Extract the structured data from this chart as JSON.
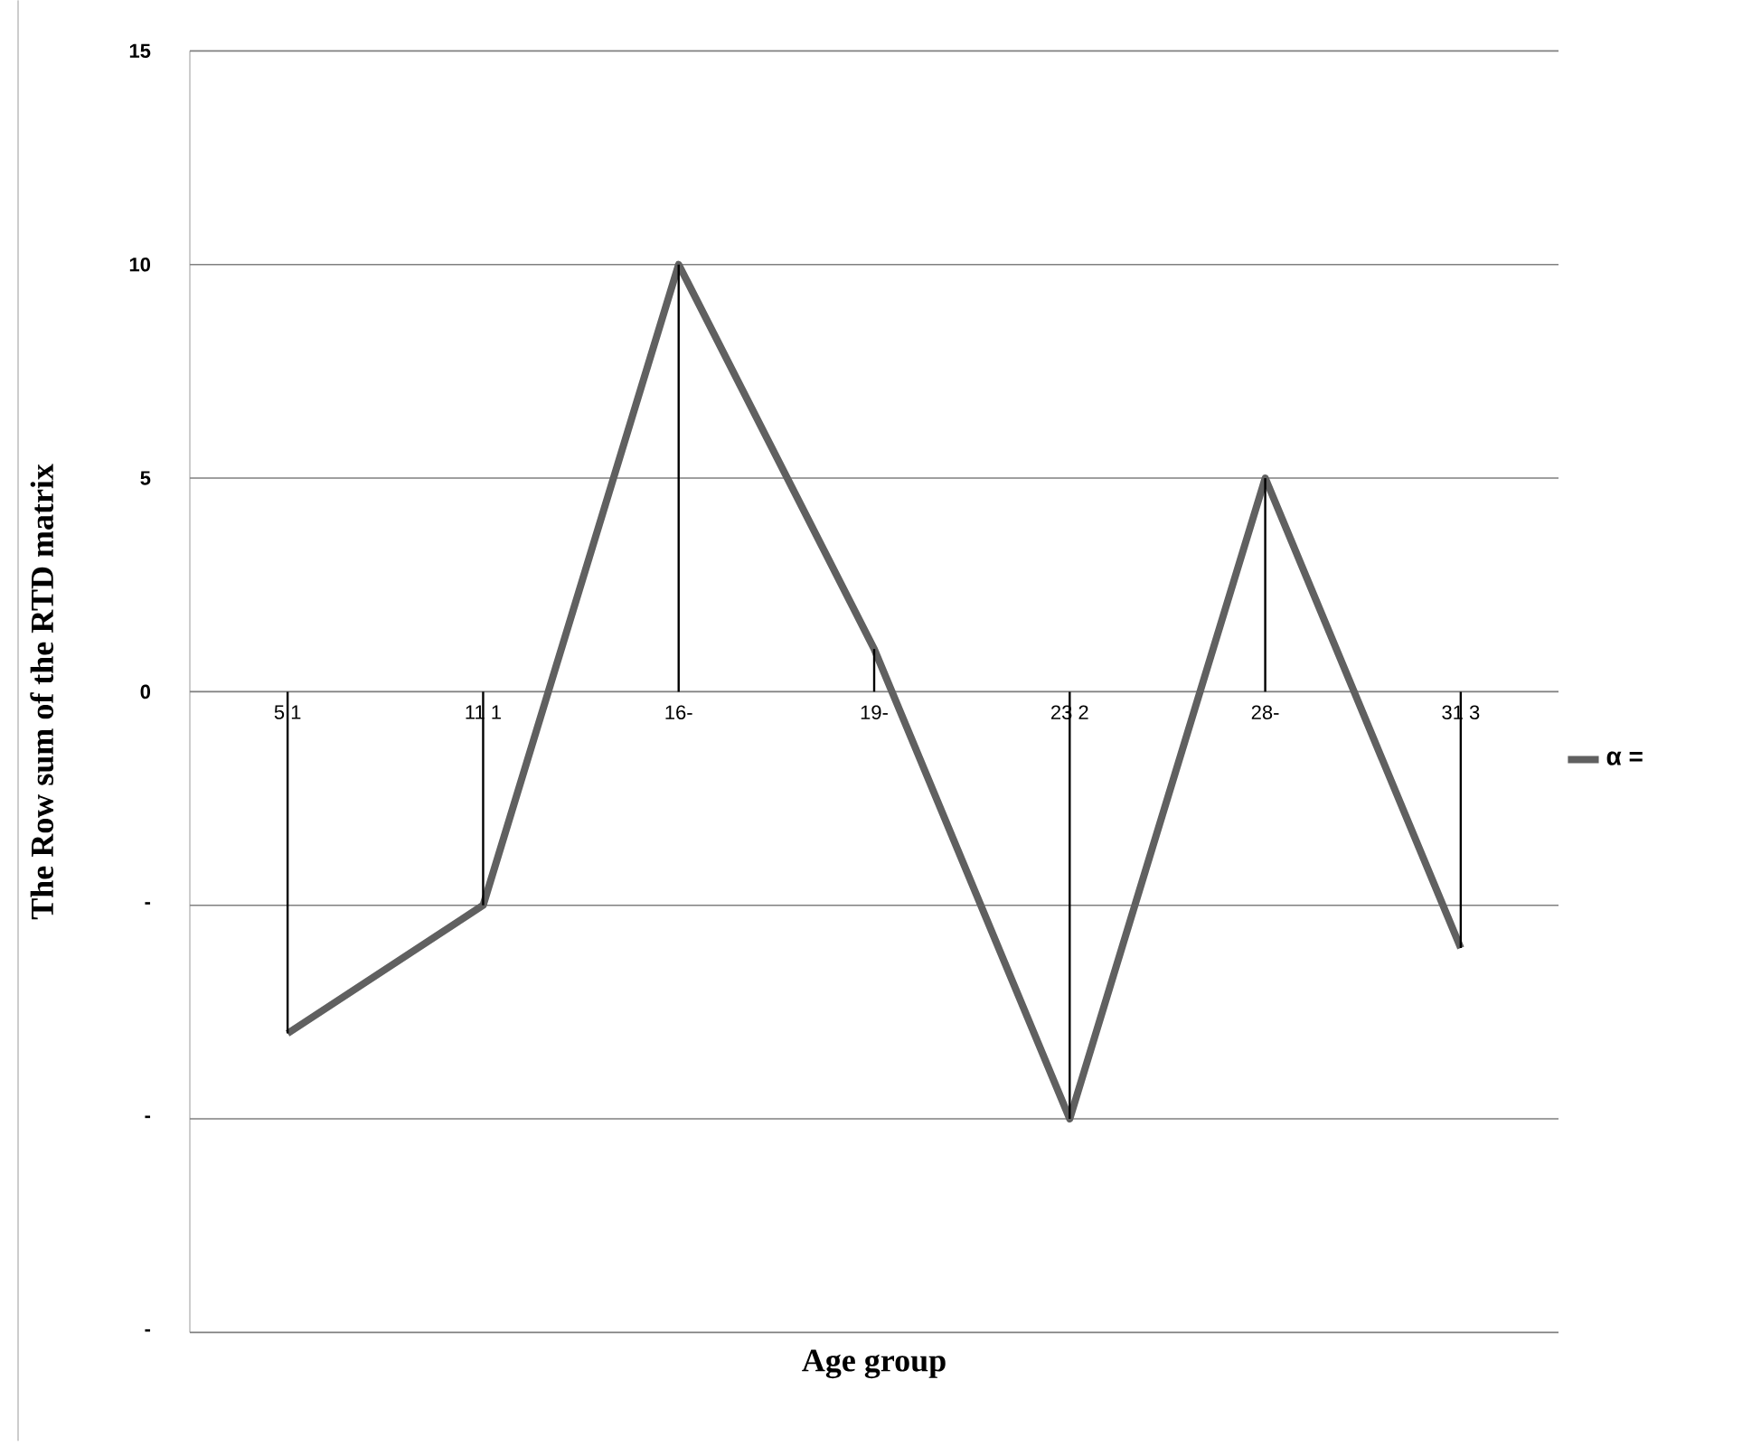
{
  "chart_data": {
    "type": "line",
    "xlabel": "Age group",
    "ylabel": "The Row sum of the RTD matrix",
    "categories": [
      "5 1",
      "11 1",
      "16-",
      "19-",
      "23 2",
      "28-",
      "31 3"
    ],
    "series": [
      {
        "name": "α =",
        "color": "#606060",
        "values": [
          -8,
          -5,
          10,
          1,
          -10,
          5,
          -6
        ]
      },
      {
        "type": "bar",
        "color": "#000000",
        "values": [
          -8,
          -5,
          10,
          1,
          -10,
          5,
          -6
        ]
      }
    ],
    "ylim": [
      -15,
      15
    ],
    "yticks": [
      {
        "value": -15,
        "label": "-"
      },
      {
        "value": -10,
        "label": "-"
      },
      {
        "value": -5,
        "label": "-"
      },
      0,
      5,
      10,
      15
    ],
    "grid": "y",
    "legend": "right",
    "marker": "none",
    "line_style": "solid"
  }
}
